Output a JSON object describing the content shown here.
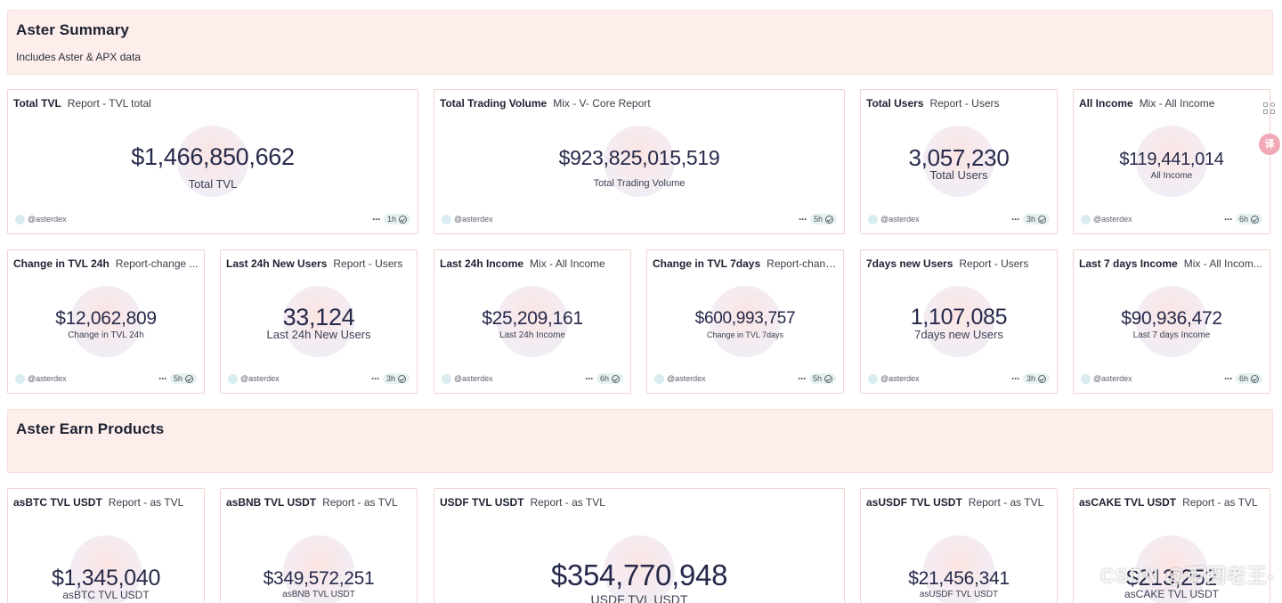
{
  "summary": {
    "title": "Aster Summary",
    "subtitle": "Includes Aster & APX data"
  },
  "earn": {
    "title": "Aster Earn Products"
  },
  "handle": "@asterdex",
  "cards": {
    "total_tvl": {
      "name": "Total TVL",
      "query": "Report - TVL total",
      "value": "$1,466,850,662",
      "label": "Total TVL",
      "age": "1h"
    },
    "total_trading_volume": {
      "name": "Total Trading Volume",
      "query": "Mix - V- Core Report",
      "value": "$923,825,015,519",
      "label": "Total Trading Volume",
      "age": "5h"
    },
    "total_users": {
      "name": "Total Users",
      "query": "Report - Users",
      "value": "3,057,230",
      "label": "Total Users",
      "age": "3h"
    },
    "all_income": {
      "name": "All Income",
      "query": "Mix - All Income",
      "value": "$119,441,014",
      "label": "All Income",
      "age": "6h"
    },
    "change_tvl_24h": {
      "name": "Change in TVL 24h",
      "query": "Report-change ...",
      "value": "$12,062,809",
      "label": "Change in TVL 24h",
      "age": "5h"
    },
    "last_24h_new_users": {
      "name": "Last 24h New Users",
      "query": "Report - Users",
      "value": "33,124",
      "label": "Last 24h New Users",
      "age": "3h"
    },
    "last_24h_income": {
      "name": "Last 24h Income",
      "query": "Mix - All Income",
      "value": "$25,209,161",
      "label": "Last 24h Income",
      "age": "6h"
    },
    "change_tvl_7days": {
      "name": "Change in TVL 7days",
      "query": "Report-chang...",
      "value": "$600,993,757",
      "label": "Change in TVL 7days",
      "age": "5h"
    },
    "new_users_7days": {
      "name": "7days new Users",
      "query": "Report - Users",
      "value": "1,107,085",
      "label": "7days new Users",
      "age": "3h"
    },
    "last_7days_income": {
      "name": "Last 7 days Income",
      "query": "Mix - All Incom...",
      "value": "$90,936,472",
      "label": "Last 7 days Income",
      "age": "6h"
    },
    "asbtc_tvl": {
      "name": "asBTC TVL USDT",
      "query": "Report - as TVL",
      "value": "$1,345,040",
      "label": "asBTC TVL USDT"
    },
    "asbnb_tvl": {
      "name": "asBNB TVL USDT",
      "query": "Report - as TVL",
      "value": "$349,572,251",
      "label": "asBNB TVL USDT"
    },
    "usdf_tvl": {
      "name": "USDF TVL USDT",
      "query": "Report - as TVL",
      "value": "$354,770,948",
      "label": "USDF TVL USDT"
    },
    "asusdf_tvl": {
      "name": "asUSDF TVL USDT",
      "query": "Report - as TVL",
      "value": "$21,456,341",
      "label": "asUSDF TVL USDT"
    },
    "ascake_tvl": {
      "name": "asCAKE TVL USDT",
      "query": "Report - as TVL",
      "value": "$213,252",
      "label": "asCAKE TVL USDT"
    }
  },
  "watermark": "CSDN @币圈老王-",
  "translate_icon": "译"
}
